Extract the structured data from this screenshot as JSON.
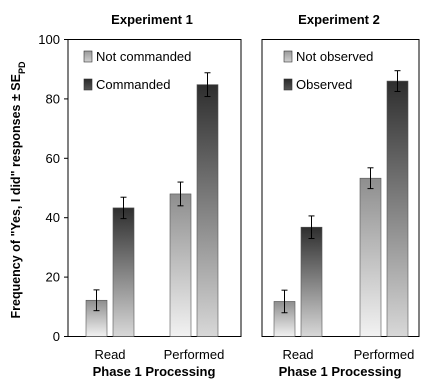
{
  "chart_data": [
    {
      "type": "bar",
      "title": "Experiment 1",
      "xlabel": "Phase 1 Processing",
      "ylabel": "Frequency of \"Yes, I did\" responses ± SE",
      "ylabel_subscript": "PD",
      "categories": [
        "Read",
        "Performed"
      ],
      "ylim": [
        0,
        100
      ],
      "yticks": [
        0,
        20,
        40,
        60,
        80,
        100
      ],
      "legend_position": "top-left",
      "series": [
        {
          "name": "Not commanded",
          "values": [
            12.2,
            48.0
          ],
          "errors": [
            3.5,
            4.0
          ],
          "color": "#9a9a9a"
        },
        {
          "name": "Commanded",
          "values": [
            43.3,
            84.8
          ],
          "errors": [
            3.6,
            4.0
          ],
          "color": "#3a3a3a"
        }
      ]
    },
    {
      "type": "bar",
      "title": "Experiment 2",
      "xlabel": "Phase 1 Processing",
      "ylabel": "",
      "categories": [
        "Read",
        "Performed"
      ],
      "ylim": [
        0,
        100
      ],
      "legend_position": "top-left",
      "series": [
        {
          "name": "Not observed",
          "values": [
            11.8,
            53.3
          ],
          "errors": [
            3.8,
            3.5
          ],
          "color": "#9a9a9a"
        },
        {
          "name": "Observed",
          "values": [
            36.8,
            86.0
          ],
          "errors": [
            3.8,
            3.5
          ],
          "color": "#3a3a3a"
        }
      ]
    }
  ]
}
